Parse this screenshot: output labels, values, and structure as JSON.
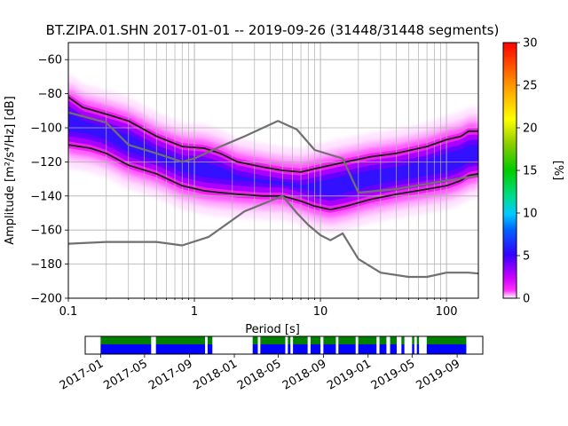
{
  "chart_data": [
    {
      "type": "heatmap",
      "title": "BT.ZIPA.01.SHN   2017-01-01 -- 2019-09-26  (31448/31448 segments)",
      "xlabel": "Period [s]",
      "ylabel": "Amplitude [m²/s⁴/Hz] [dB]",
      "xscale": "log",
      "xlim": [
        0.1,
        179
      ],
      "ylim": [
        -200,
        -50
      ],
      "x_tick_values": [
        0.1,
        1,
        10,
        100
      ],
      "x_tick_labels": [
        "0.1",
        "1",
        "10",
        "100"
      ],
      "y_tick_values": [
        -200,
        -180,
        -160,
        -140,
        -120,
        -100,
        -80,
        -60
      ],
      "y_tick_labels": [
        "−200",
        "−180",
        "−160",
        "−140",
        "−120",
        "−100",
        "−80",
        "−60"
      ],
      "grid": true,
      "colorbar": {
        "label": "[%]",
        "range": [
          0,
          30
        ],
        "tick_values": [
          0,
          5,
          10,
          15,
          20,
          25,
          30
        ],
        "tick_labels": [
          "0",
          "5",
          "10",
          "15",
          "20",
          "25",
          "30"
        ]
      },
      "series": [
        {
          "color": "#1a1a1a",
          "points": [
            [
              0.1,
              -82
            ],
            [
              0.13,
              -88
            ],
            [
              0.2,
              -92
            ],
            [
              0.3,
              -96
            ],
            [
              0.5,
              -105
            ],
            [
              0.8,
              -111
            ],
            [
              1.2,
              -112
            ],
            [
              1.6,
              -115
            ],
            [
              2.2,
              -120
            ],
            [
              3.5,
              -123
            ],
            [
              5,
              -125
            ],
            [
              7,
              -126
            ],
            [
              9,
              -124
            ],
            [
              12,
              -122
            ],
            [
              16,
              -120
            ],
            [
              25,
              -117
            ],
            [
              40,
              -115
            ],
            [
              70,
              -111
            ],
            [
              100,
              -107
            ],
            [
              130,
              -105
            ],
            [
              150,
              -102
            ],
            [
              179,
              -102
            ]
          ]
        },
        {
          "color": "#1a1a1a",
          "points": [
            [
              0.1,
              -110
            ],
            [
              0.15,
              -112
            ],
            [
              0.2,
              -115
            ],
            [
              0.3,
              -122
            ],
            [
              0.5,
              -127
            ],
            [
              0.8,
              -134
            ],
            [
              1.2,
              -137
            ],
            [
              1.6,
              -138
            ],
            [
              2.2,
              -139
            ],
            [
              3.5,
              -140
            ],
            [
              5,
              -140
            ],
            [
              7,
              -143
            ],
            [
              9,
              -146
            ],
            [
              12,
              -148
            ],
            [
              16,
              -146
            ],
            [
              25,
              -142
            ],
            [
              40,
              -139
            ],
            [
              70,
              -136
            ],
            [
              100,
              -134
            ],
            [
              130,
              -131
            ],
            [
              150,
              -128
            ],
            [
              179,
              -127
            ]
          ]
        },
        {
          "color": "#707070",
          "points": [
            [
              0.1,
              -91
            ],
            [
              0.2,
              -97
            ],
            [
              0.3,
              -110
            ],
            [
              0.5,
              -115
            ],
            [
              0.8,
              -120
            ],
            [
              1.0,
              -118
            ],
            [
              1.5,
              -112
            ],
            [
              2.5,
              -105
            ],
            [
              4,
              -98
            ],
            [
              4.6,
              -96
            ],
            [
              6.5,
              -101
            ],
            [
              9,
              -113
            ],
            [
              15,
              -118
            ],
            [
              20,
              -138
            ],
            [
              40,
              -136
            ],
            [
              100,
              -131
            ],
            [
              179,
              -128
            ]
          ]
        },
        {
          "color": "#707070",
          "points": [
            [
              0.1,
              -168
            ],
            [
              0.2,
              -167
            ],
            [
              0.5,
              -167
            ],
            [
              0.8,
              -169
            ],
            [
              1.3,
              -164
            ],
            [
              2.5,
              -149
            ],
            [
              5,
              -140
            ],
            [
              6.5,
              -150
            ],
            [
              8,
              -157
            ],
            [
              10,
              -163
            ],
            [
              12,
              -166
            ],
            [
              15,
              -162
            ],
            [
              20,
              -177
            ],
            [
              30,
              -185
            ],
            [
              50,
              -187.5
            ],
            [
              70,
              -187.5
            ],
            [
              100,
              -185
            ],
            [
              150,
              -185
            ],
            [
              179,
              -185.5
            ]
          ]
        }
      ]
    },
    {
      "type": "timeline",
      "x_tick_labels": [
        "2017-01",
        "2017-05",
        "2017-09",
        "2018-01",
        "2018-05",
        "2018-09",
        "2019-01",
        "2019-05",
        "2019-09"
      ],
      "xlim": [
        "2016-11-20",
        "2019-11-10"
      ],
      "data_segments": [
        [
          "2017-01-01",
          "2017-05-19"
        ],
        [
          "2017-06-01",
          "2017-10-13"
        ],
        [
          "2017-10-20",
          "2017-11-02"
        ],
        [
          "2018-02-20",
          "2018-03-06"
        ],
        [
          "2018-03-13",
          "2018-05-20"
        ],
        [
          "2018-05-27",
          "2018-06-03"
        ],
        [
          "2018-06-10",
          "2018-07-20"
        ],
        [
          "2018-07-28",
          "2018-08-24"
        ],
        [
          "2018-09-01",
          "2018-10-05"
        ],
        [
          "2018-10-12",
          "2018-11-28"
        ],
        [
          "2018-12-05",
          "2019-01-24"
        ],
        [
          "2019-02-01",
          "2019-02-20"
        ],
        [
          "2019-03-02",
          "2019-03-20"
        ],
        [
          "2019-04-02",
          "2019-04-10"
        ],
        [
          "2019-05-01",
          "2019-05-07"
        ],
        [
          "2019-05-14",
          "2019-05-20"
        ],
        [
          "2019-06-10",
          "2019-09-26"
        ]
      ],
      "colors": [
        "#008000",
        "#0000ff"
      ]
    }
  ]
}
